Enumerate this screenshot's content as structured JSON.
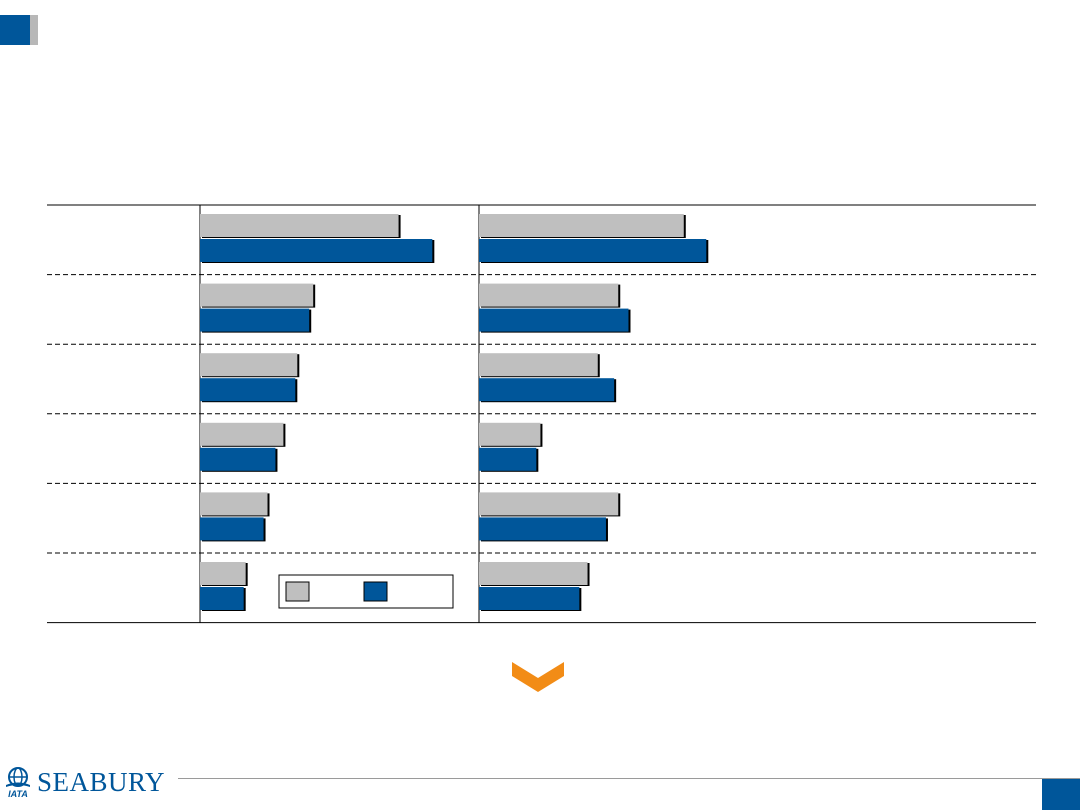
{
  "colors": {
    "series_a": "#bfbfbf",
    "series_b": "#00569a",
    "accent": "#f28c16"
  },
  "logo": {
    "text": "SEABURY",
    "mark_text": "IATA",
    "icon": "iata-globe-icon"
  },
  "chart_data": [
    {
      "type": "bar",
      "orientation": "horizontal",
      "categories": [
        "",
        "",
        "",
        "",
        "",
        ""
      ],
      "series": [
        {
          "values": [
            100,
            57,
            49,
            42,
            34,
            23
          ]
        },
        {
          "values": [
            117,
            55,
            48,
            38,
            32,
            22
          ]
        }
      ],
      "xlim": [
        0,
        140
      ],
      "grid": false,
      "legend_position": "bottom-right"
    },
    {
      "type": "bar",
      "orientation": "horizontal",
      "categories": [
        "",
        "",
        "",
        "",
        "",
        ""
      ],
      "series": [
        {
          "values": [
            100,
            68,
            58,
            30,
            68,
            53
          ]
        },
        {
          "values": [
            111,
            73,
            66,
            28,
            62,
            49
          ]
        }
      ],
      "xlim": [
        0,
        272
      ],
      "grid": false
    }
  ]
}
